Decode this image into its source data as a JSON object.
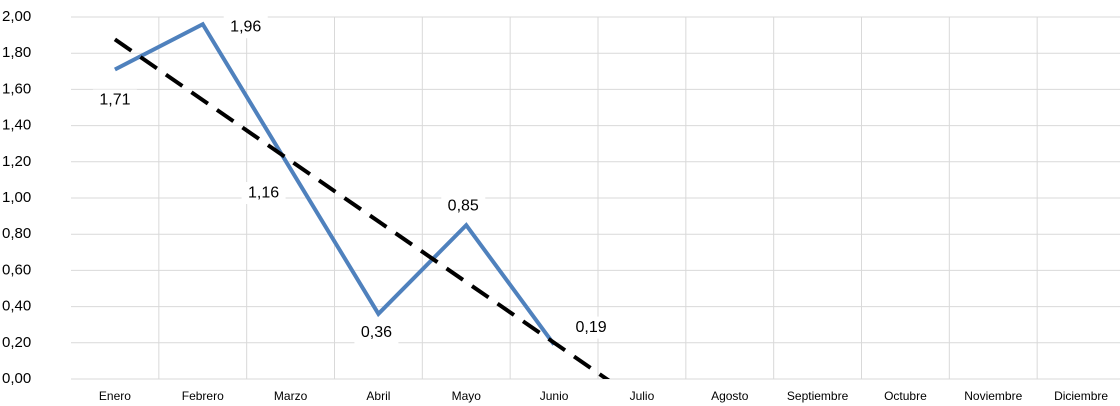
{
  "chart_data": {
    "type": "line",
    "categories": [
      "Enero",
      "Febrero",
      "Marzo",
      "Abril",
      "Mayo",
      "Junio",
      "Julio",
      "Agosto",
      "Septiembre",
      "Octubre",
      "Noviembre",
      "Diciembre"
    ],
    "series": [
      {
        "color": "#4f81bd",
        "values": [
          1.71,
          1.96,
          1.16,
          0.36,
          0.85,
          0.19,
          null,
          null,
          null,
          null,
          null,
          null
        ],
        "value_labels": [
          "1,71",
          "1,96",
          "1,16",
          "0,36",
          "0,85",
          "0,19",
          null,
          null,
          null,
          null,
          null,
          null
        ]
      }
    ],
    "trendline": {
      "kind": "linear",
      "color": "#000000",
      "dashed": true
    },
    "ylim": [
      0,
      2
    ],
    "yticks": [
      {
        "value": 0,
        "label": "0,00"
      },
      {
        "value": 0.2,
        "label": "0,20"
      },
      {
        "value": 0.4,
        "label": "0,40"
      },
      {
        "value": 0.6,
        "label": "0,60"
      },
      {
        "value": 0.8,
        "label": "0,80"
      },
      {
        "value": 1,
        "label": "1,00"
      },
      {
        "value": 1.2,
        "label": "1,20"
      },
      {
        "value": 1.4,
        "label": "1,40"
      },
      {
        "value": 1.6,
        "label": "1,60"
      },
      {
        "value": 1.8,
        "label": "1,80"
      },
      {
        "value": 2,
        "label": "2,00"
      }
    ],
    "grid": true
  }
}
